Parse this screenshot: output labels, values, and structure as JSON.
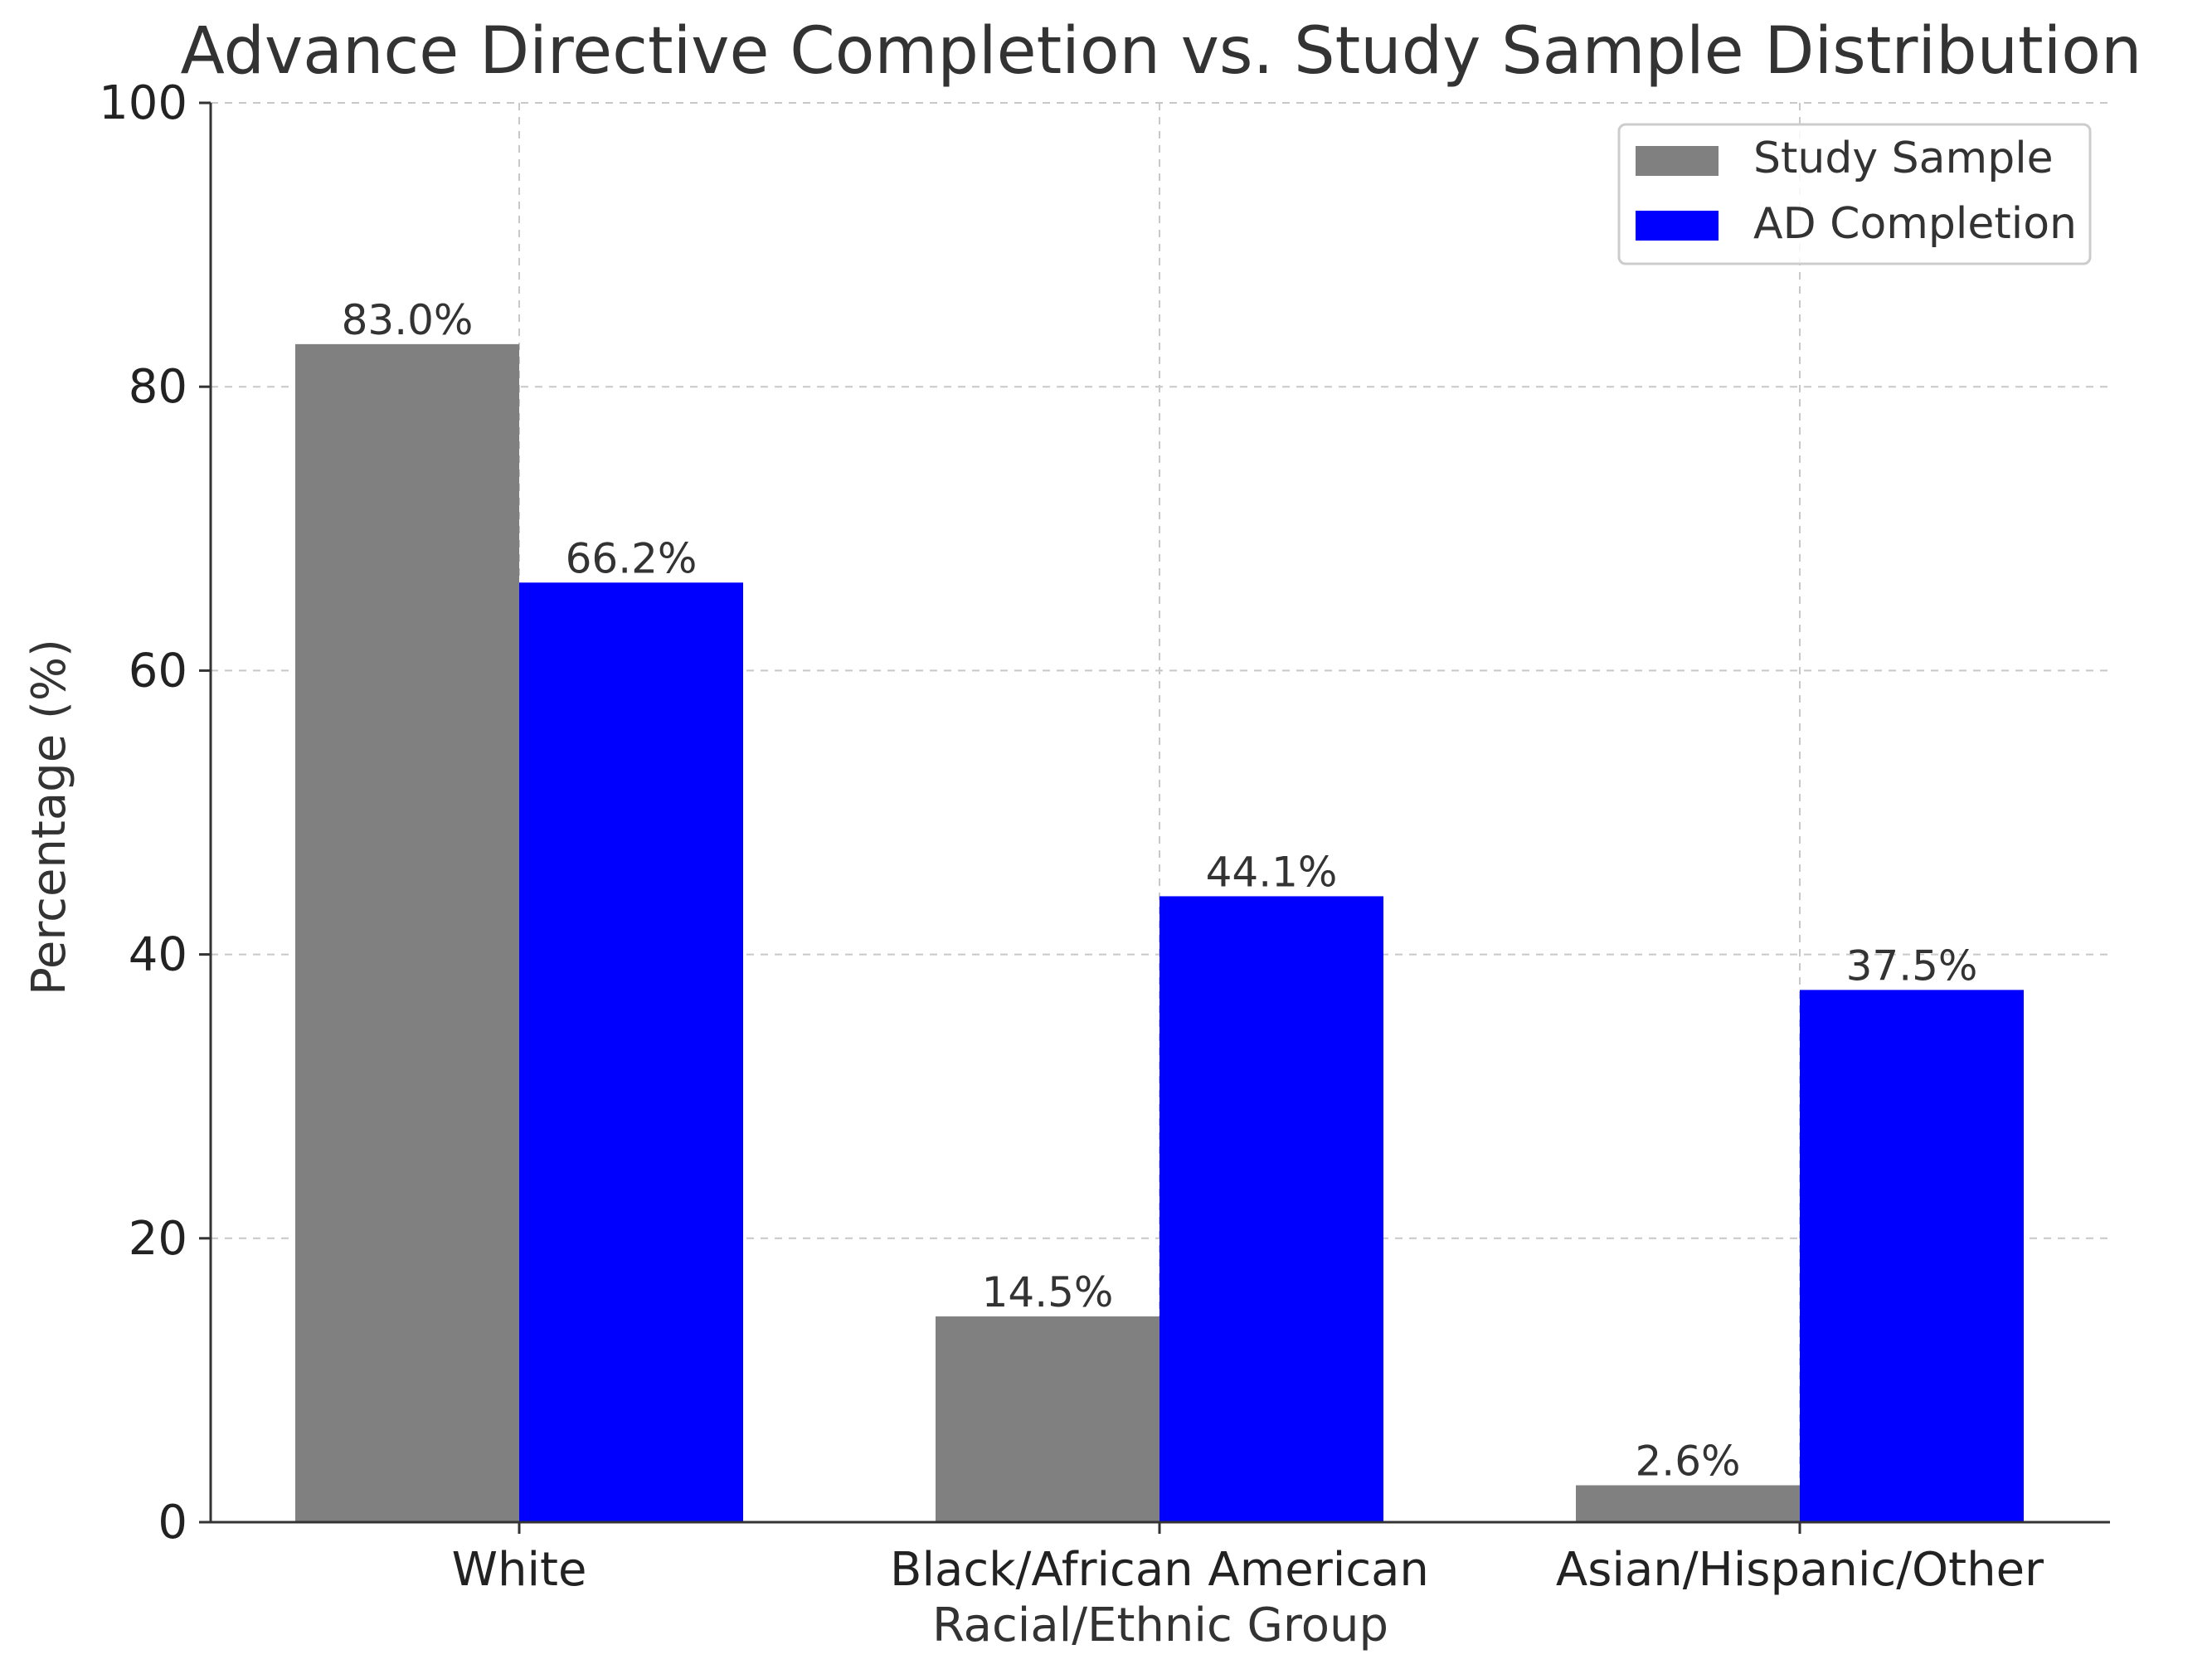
{
  "chart_data": {
    "type": "bar",
    "title": "Advance Directive Completion vs. Study Sample Distribution",
    "xlabel": "Racial/Ethnic Group",
    "ylabel": "Percentage (%)",
    "categories": [
      "White",
      "Black/African American",
      "Asian/Hispanic/Other"
    ],
    "series": [
      {
        "name": "Study Sample",
        "color": "#808080",
        "values": [
          83.0,
          14.5,
          2.6
        ],
        "labels": [
          "83.0%",
          "14.5%",
          "2.6%"
        ]
      },
      {
        "name": "AD Completion",
        "color": "#0000ff",
        "values": [
          66.2,
          44.1,
          37.5
        ],
        "labels": [
          "66.2%",
          "44.1%",
          "37.5%"
        ]
      }
    ],
    "ylim": [
      0,
      100
    ],
    "yticks": [
      0,
      20,
      40,
      60,
      80,
      100
    ],
    "ytick_labels": [
      "0",
      "20",
      "40",
      "60",
      "80",
      "100"
    ],
    "grid": true,
    "legend_position": "top-right"
  }
}
